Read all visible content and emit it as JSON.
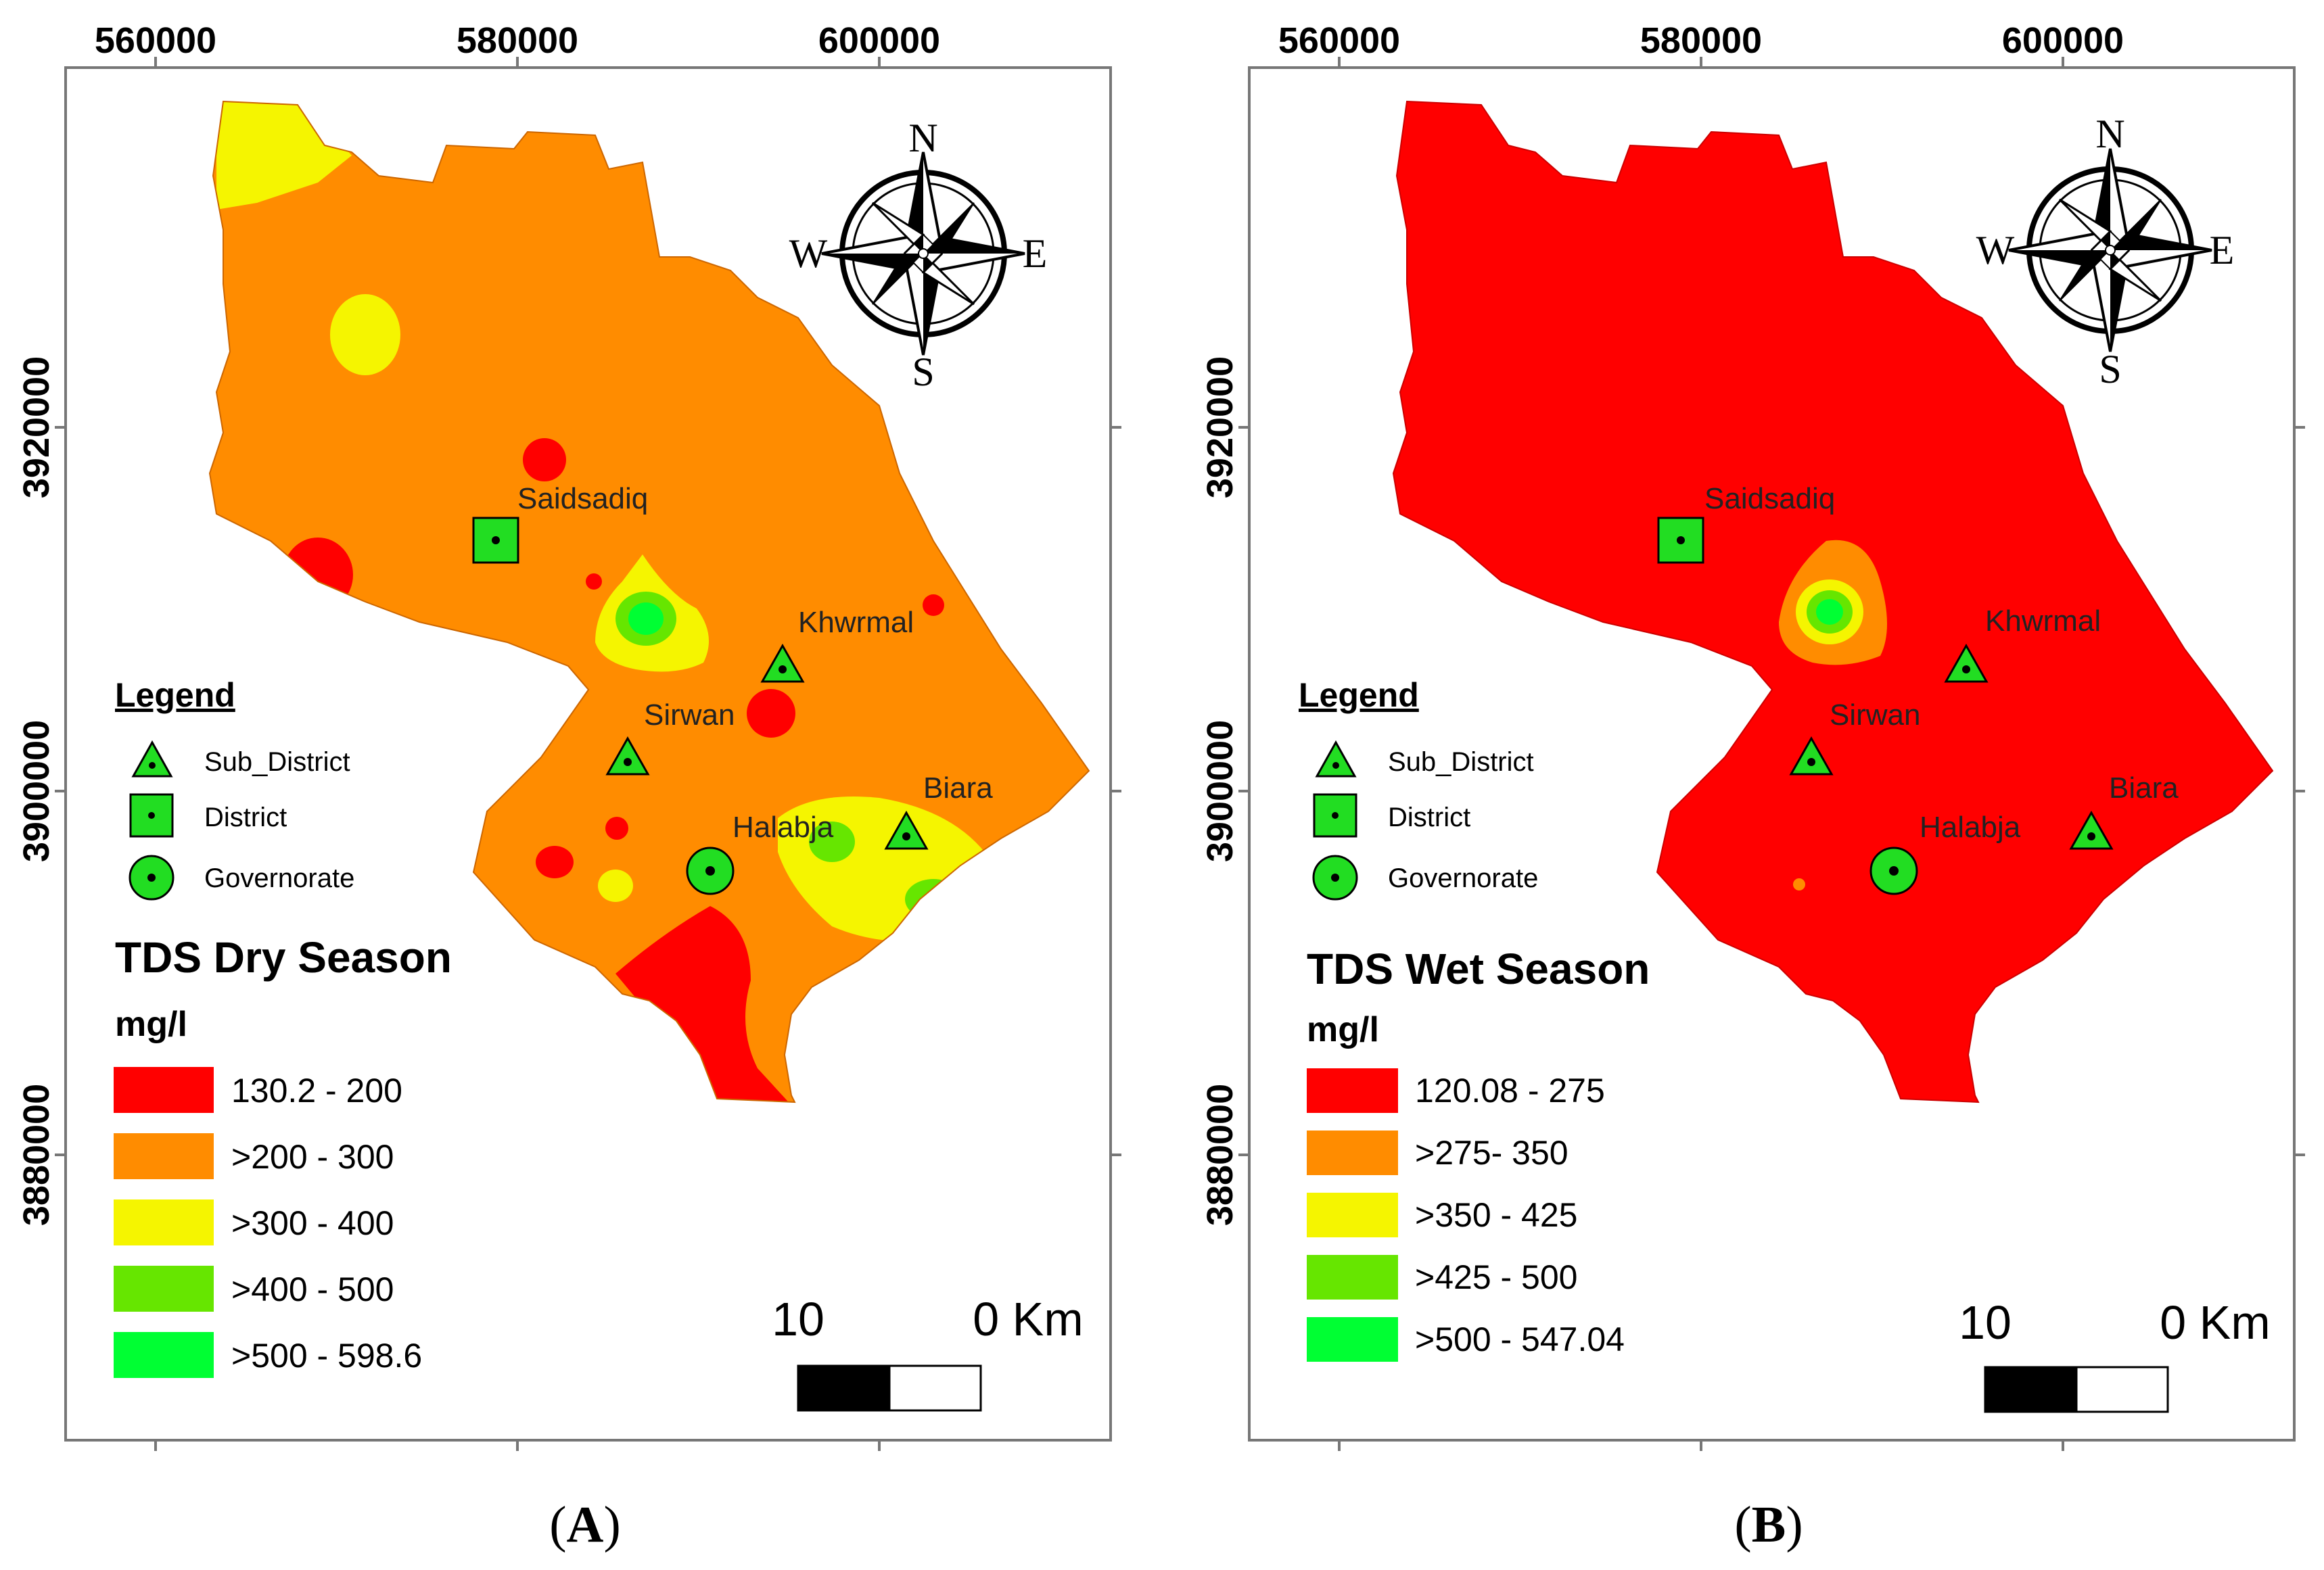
{
  "colors": {
    "class1": "#ff0000",
    "class2": "#ff8c00",
    "class3": "#f5f500",
    "class4": "#66e600",
    "class5": "#00ff33",
    "symbol_fill": "#22dd22",
    "frame": "#777777"
  },
  "axes": {
    "x_ticks": [
      "560000",
      "580000",
      "600000"
    ],
    "y_ticks": [
      "3920000",
      "3900000",
      "3880000"
    ]
  },
  "places": {
    "saidsadiq": "Saidsadiq",
    "khwrmal": "Khwrmal",
    "sirwan": "Sirwan",
    "biara": "Biara",
    "halabja": "Halabja"
  },
  "compass": {
    "n": "N",
    "s": "S",
    "e": "E",
    "w": "W"
  },
  "legend": {
    "title": "Legend",
    "sub_district": "Sub_District",
    "district": "District",
    "governorate": "Governorate"
  },
  "unit": "mg/l",
  "scale": {
    "left": "10",
    "right": "0 Km"
  },
  "panels": [
    {
      "caption_open": "(",
      "caption_letter": "A",
      "caption_close": ")",
      "title": "TDS Dry Season",
      "classes": [
        "130.2 - 200",
        ">200 - 300",
        ">300 - 400",
        ">400 - 500",
        ">500 - 598.6"
      ]
    },
    {
      "caption_open": "(",
      "caption_letter": "B",
      "caption_close": ")",
      "title": "TDS Wet Season",
      "classes": [
        "120.08 - 275",
        ">275- 350",
        ">350 - 425",
        ">425 - 500",
        ">500 - 547.04"
      ]
    }
  ]
}
